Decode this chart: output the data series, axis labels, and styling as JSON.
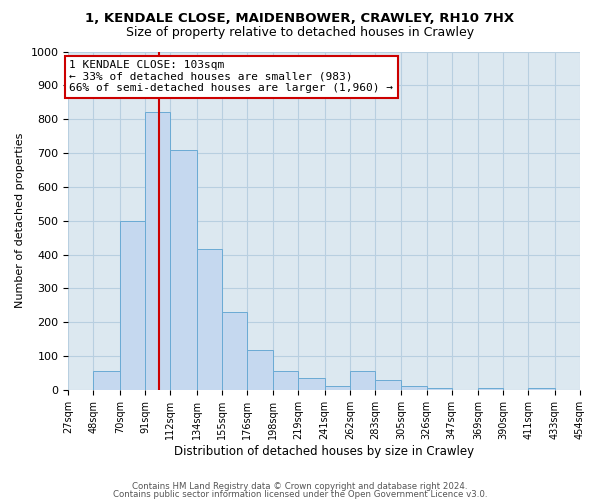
{
  "title_line1": "1, KENDALE CLOSE, MAIDENBOWER, CRAWLEY, RH10 7HX",
  "title_line2": "Size of property relative to detached houses in Crawley",
  "xlabel": "Distribution of detached houses by size in Crawley",
  "ylabel": "Number of detached properties",
  "bin_edges": [
    27,
    48,
    70,
    91,
    112,
    134,
    155,
    176,
    198,
    219,
    241,
    262,
    283,
    305,
    326,
    347,
    369,
    390,
    411,
    433,
    454
  ],
  "bar_heights": [
    0,
    55,
    500,
    820,
    710,
    415,
    230,
    118,
    55,
    35,
    10,
    55,
    30,
    12,
    5,
    0,
    5,
    0,
    5,
    0
  ],
  "bar_color": "#c5d8ef",
  "bar_edge_color": "#6aaad4",
  "vline_x": 103,
  "vline_color": "#cc0000",
  "annotation_box_text": "1 KENDALE CLOSE: 103sqm\n← 33% of detached houses are smaller (983)\n66% of semi-detached houses are larger (1,960) →",
  "annotation_box_facecolor": "white",
  "annotation_box_edgecolor": "#cc0000",
  "ylim": [
    0,
    1000
  ],
  "yticks": [
    0,
    100,
    200,
    300,
    400,
    500,
    600,
    700,
    800,
    900,
    1000
  ],
  "grid_color": "#b8cfe0",
  "background_color": "#dce8f0",
  "footer_line1": "Contains HM Land Registry data © Crown copyright and database right 2024.",
  "footer_line2": "Contains public sector information licensed under the Open Government Licence v3.0.",
  "tick_labels": [
    "27sqm",
    "48sqm",
    "70sqm",
    "91sqm",
    "112sqm",
    "134sqm",
    "155sqm",
    "176sqm",
    "198sqm",
    "219sqm",
    "241sqm",
    "262sqm",
    "283sqm",
    "305sqm",
    "326sqm",
    "347sqm",
    "369sqm",
    "390sqm",
    "411sqm",
    "433sqm",
    "454sqm"
  ]
}
